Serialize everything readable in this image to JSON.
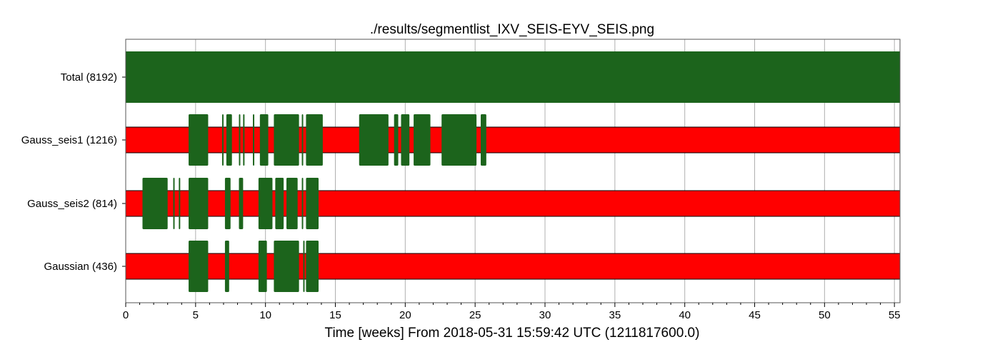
{
  "chart_data": {
    "type": "segment-timeline",
    "title": "./results/segmentlist_IXV_SEIS-EYV_SEIS.png",
    "xlabel": "Time [weeks] From 2018-05-31 15:59:42 UTC (1211817600.0)",
    "xlim": [
      0,
      55.4
    ],
    "x_ticks": [
      "0",
      "5",
      "10",
      "15",
      "20",
      "25",
      "30",
      "35",
      "40",
      "45",
      "50",
      "55"
    ],
    "grid": true,
    "colors": {
      "active": "#1c641c",
      "known": "#ff0000",
      "edge": "#000000"
    },
    "rows": [
      {
        "label": "Total (8192)",
        "known": [],
        "active": [
          [
            0,
            55.4
          ]
        ],
        "style": "full"
      },
      {
        "label": "Gauss_seis1 (1216)",
        "known": [
          [
            0,
            55.4
          ]
        ],
        "active": [
          [
            4.5,
            5.9
          ],
          [
            6.9,
            7.0
          ],
          [
            7.2,
            7.6
          ],
          [
            8.1,
            8.2
          ],
          [
            8.4,
            8.5
          ],
          [
            9.1,
            9.2
          ],
          [
            9.6,
            10.2
          ],
          [
            10.6,
            12.4
          ],
          [
            12.6,
            12.7
          ],
          [
            12.9,
            14.1
          ],
          [
            16.7,
            18.8
          ],
          [
            19.2,
            19.5
          ],
          [
            19.7,
            20.3
          ],
          [
            20.6,
            21.8
          ],
          [
            22.6,
            25.1
          ],
          [
            25.4,
            25.8
          ]
        ],
        "style": "partial"
      },
      {
        "label": "Gauss_seis2 (814)",
        "known": [
          [
            0,
            55.4
          ]
        ],
        "active": [
          [
            1.2,
            3.0
          ],
          [
            3.4,
            3.5
          ],
          [
            3.8,
            3.9
          ],
          [
            4.5,
            5.9
          ],
          [
            7.1,
            7.5
          ],
          [
            8.1,
            8.4
          ],
          [
            9.5,
            10.5
          ],
          [
            10.7,
            11.3
          ],
          [
            11.5,
            12.3
          ],
          [
            12.6,
            12.7
          ],
          [
            12.9,
            13.8
          ]
        ],
        "style": "partial"
      },
      {
        "label": "Gaussian (436)",
        "known": [
          [
            0,
            55.4
          ]
        ],
        "active": [
          [
            4.5,
            5.9
          ],
          [
            7.1,
            7.4
          ],
          [
            9.5,
            10.1
          ],
          [
            10.6,
            12.4
          ],
          [
            12.7,
            12.8
          ],
          [
            12.9,
            13.8
          ]
        ],
        "style": "partial"
      }
    ]
  }
}
